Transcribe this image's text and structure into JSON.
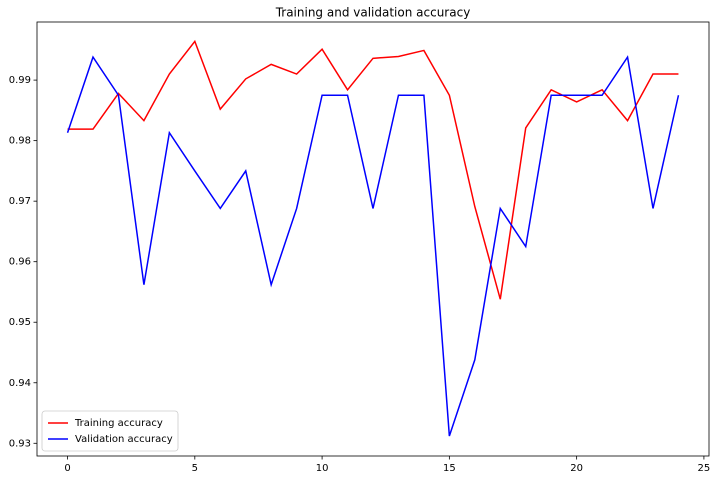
{
  "chart_data": {
    "type": "line",
    "title": "Training and validation accuracy",
    "x": [
      0,
      1,
      2,
      3,
      4,
      5,
      6,
      7,
      8,
      9,
      10,
      11,
      12,
      13,
      14,
      15,
      16,
      17,
      18,
      19,
      20,
      21,
      22,
      23,
      24
    ],
    "series": [
      {
        "name": "Training accuracy",
        "color": "#ff0000",
        "values": [
          0.9819,
          0.9819,
          0.9878,
          0.9833,
          0.991,
          0.9964,
          0.9852,
          0.9902,
          0.9926,
          0.991,
          0.9951,
          0.9884,
          0.9936,
          0.9939,
          0.9949,
          0.9875,
          0.9691,
          0.9538,
          0.9821,
          0.9884,
          0.9864,
          0.9884,
          0.9833,
          0.991,
          0.991
        ]
      },
      {
        "name": "Validation accuracy",
        "color": "#0000ff",
        "values": [
          0.9813,
          0.9938,
          0.9875,
          0.9562,
          0.9813,
          0.975,
          0.9688,
          0.975,
          0.9562,
          0.9688,
          0.9875,
          0.9875,
          0.9688,
          0.9875,
          0.9875,
          0.9312,
          0.9438,
          0.9688,
          0.9625,
          0.9875,
          0.9875,
          0.9875,
          0.9938,
          0.9688,
          0.9875
        ]
      }
    ],
    "xlim": [
      -1.2,
      25.2
    ],
    "xticks": [
      0,
      5,
      10,
      15,
      20,
      25
    ],
    "ylim": [
      0.9279,
      0.9996
    ],
    "yticks": [
      0.93,
      0.94,
      0.95,
      0.96,
      0.97,
      0.98,
      0.99
    ],
    "grid": false,
    "legend": "lower left"
  }
}
